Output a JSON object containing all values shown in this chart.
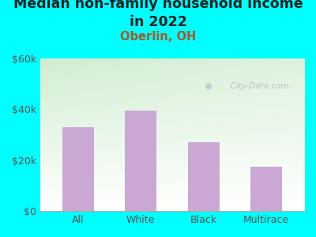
{
  "title": "Median non-family household income\nin 2022",
  "subtitle": "Oberlin, OH",
  "categories": [
    "All",
    "White",
    "Black",
    "Multirace"
  ],
  "values": [
    33000,
    39500,
    27000,
    17500
  ],
  "bar_color": "#c9a8d4",
  "ylim": [
    0,
    60000
  ],
  "yticks": [
    0,
    20000,
    40000,
    60000
  ],
  "ytick_labels": [
    "$0",
    "$20k",
    "$40k",
    "$60k"
  ],
  "title_fontsize": 12.5,
  "subtitle_fontsize": 10.5,
  "subtitle_color": "#a05a2c",
  "title_color": "#222222",
  "bg_outer": "#00ffff",
  "watermark": "  City-Data.com",
  "xlabel_color": "#555555",
  "tick_color": "#555555"
}
